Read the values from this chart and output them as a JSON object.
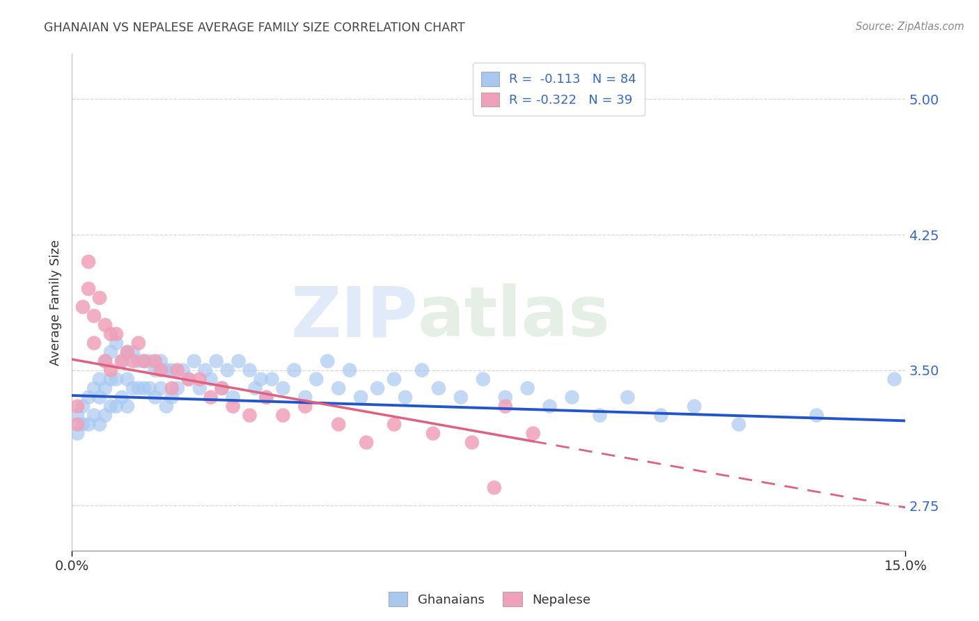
{
  "title": "GHANAIAN VS NEPALESE AVERAGE FAMILY SIZE CORRELATION CHART",
  "source": "Source: ZipAtlas.com",
  "xlabel": "",
  "ylabel": "Average Family Size",
  "xlim": [
    0.0,
    0.15
  ],
  "ylim": [
    2.5,
    5.25
  ],
  "yticks": [
    2.75,
    3.5,
    4.25,
    5.0
  ],
  "xtick_labels": [
    "0.0%",
    "15.0%"
  ],
  "background_color": "#ffffff",
  "grid_color": "#cccccc",
  "watermark_text": "ZIP",
  "watermark_text2": "atlas",
  "legend_r_blue": "-0.113",
  "legend_n_blue": "84",
  "legend_r_pink": "-0.322",
  "legend_n_pink": "39",
  "legend_label_blue": "Ghanaians",
  "legend_label_pink": "Nepalese",
  "blue_scatter_color": "#a8c8f0",
  "pink_scatter_color": "#f0a0b8",
  "blue_line_color": "#2255cc",
  "pink_line_color": "#e06080",
  "title_color": "#444444",
  "axis_color": "#3366cc",
  "ghanaian_x": [
    0.001,
    0.001,
    0.002,
    0.002,
    0.003,
    0.003,
    0.004,
    0.004,
    0.005,
    0.005,
    0.005,
    0.006,
    0.006,
    0.006,
    0.007,
    0.007,
    0.007,
    0.008,
    0.008,
    0.008,
    0.009,
    0.009,
    0.01,
    0.01,
    0.01,
    0.011,
    0.011,
    0.012,
    0.012,
    0.013,
    0.013,
    0.014,
    0.014,
    0.015,
    0.015,
    0.016,
    0.016,
    0.017,
    0.017,
    0.018,
    0.018,
    0.019,
    0.02,
    0.021,
    0.022,
    0.023,
    0.024,
    0.025,
    0.026,
    0.027,
    0.028,
    0.029,
    0.03,
    0.032,
    0.033,
    0.034,
    0.035,
    0.036,
    0.038,
    0.04,
    0.042,
    0.044,
    0.046,
    0.048,
    0.05,
    0.052,
    0.055,
    0.058,
    0.06,
    0.063,
    0.066,
    0.07,
    0.074,
    0.078,
    0.082,
    0.086,
    0.09,
    0.095,
    0.1,
    0.106,
    0.112,
    0.12,
    0.134,
    0.148
  ],
  "ghanaian_y": [
    3.25,
    3.15,
    3.3,
    3.2,
    3.35,
    3.2,
    3.4,
    3.25,
    3.45,
    3.35,
    3.2,
    3.55,
    3.4,
    3.25,
    3.6,
    3.45,
    3.3,
    3.65,
    3.45,
    3.3,
    3.55,
    3.35,
    3.6,
    3.45,
    3.3,
    3.6,
    3.4,
    3.55,
    3.4,
    3.55,
    3.4,
    3.55,
    3.4,
    3.5,
    3.35,
    3.55,
    3.4,
    3.5,
    3.3,
    3.5,
    3.35,
    3.4,
    3.5,
    3.45,
    3.55,
    3.4,
    3.5,
    3.45,
    3.55,
    3.4,
    3.5,
    3.35,
    3.55,
    3.5,
    3.4,
    3.45,
    3.35,
    3.45,
    3.4,
    3.5,
    3.35,
    3.45,
    3.55,
    3.4,
    3.5,
    3.35,
    3.4,
    3.45,
    3.35,
    3.5,
    3.4,
    3.35,
    3.45,
    3.35,
    3.4,
    3.3,
    3.35,
    3.25,
    3.35,
    3.25,
    3.3,
    3.2,
    3.25,
    3.45
  ],
  "nepalese_x": [
    0.001,
    0.001,
    0.002,
    0.003,
    0.003,
    0.004,
    0.004,
    0.005,
    0.006,
    0.006,
    0.007,
    0.007,
    0.008,
    0.009,
    0.01,
    0.011,
    0.012,
    0.013,
    0.015,
    0.016,
    0.018,
    0.019,
    0.021,
    0.023,
    0.025,
    0.027,
    0.029,
    0.032,
    0.035,
    0.038,
    0.042,
    0.048,
    0.053,
    0.058,
    0.065,
    0.072,
    0.078,
    0.083,
    0.076
  ],
  "nepalese_y": [
    3.3,
    3.2,
    3.85,
    4.1,
    3.95,
    3.8,
    3.65,
    3.9,
    3.75,
    3.55,
    3.7,
    3.5,
    3.7,
    3.55,
    3.6,
    3.55,
    3.65,
    3.55,
    3.55,
    3.5,
    3.4,
    3.5,
    3.45,
    3.45,
    3.35,
    3.4,
    3.3,
    3.25,
    3.35,
    3.25,
    3.3,
    3.2,
    3.1,
    3.2,
    3.15,
    3.1,
    3.3,
    3.15,
    2.85
  ]
}
